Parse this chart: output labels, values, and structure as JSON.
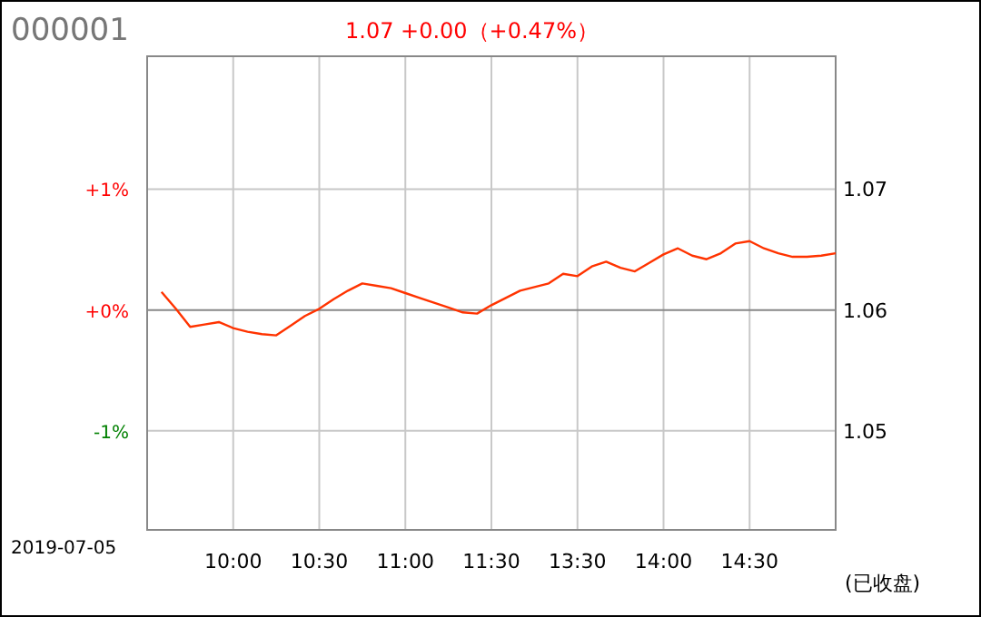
{
  "chart_data": {
    "type": "line",
    "title": "000001",
    "subtitle": "1.07   +0.00（+0.47%）",
    "annotations": [
      "2019-07-05",
      "(已收盘)"
    ],
    "series": [
      {
        "color": "#ff3300",
        "values": [
          0.15,
          0.01,
          -0.14,
          -0.12,
          -0.1,
          -0.15,
          -0.18,
          -0.2,
          -0.21,
          -0.13,
          -0.05,
          0.01,
          0.09,
          0.16,
          0.22,
          0.2,
          0.18,
          0.14,
          0.1,
          0.06,
          0.02,
          -0.02,
          -0.03,
          0.04,
          0.1,
          0.16,
          0.19,
          0.22,
          0.3,
          0.28,
          0.36,
          0.4,
          0.35,
          0.32,
          0.39,
          0.46,
          0.51,
          0.45,
          0.42,
          0.47,
          0.55,
          0.57,
          0.51,
          0.47,
          0.44,
          0.44,
          0.45,
          0.47
        ]
      }
    ],
    "categories": [
      null,
      null,
      null,
      null,
      null,
      "10:00",
      null,
      null,
      null,
      null,
      null,
      "10:30",
      null,
      null,
      null,
      null,
      null,
      "11:00",
      null,
      null,
      null,
      null,
      null,
      "11:30",
      null,
      null,
      null,
      null,
      null,
      "13:30",
      null,
      null,
      null,
      null,
      null,
      "14:00",
      null,
      null,
      null,
      null,
      null,
      "14:30",
      null,
      null,
      null,
      null,
      null,
      null
    ],
    "ylim": [
      -1.82,
      2.1
    ],
    "yticks": [
      {
        "value": 1,
        "label": "+1%"
      },
      {
        "value": 0,
        "label": "+0%"
      },
      {
        "value": -1,
        "label": "-1%"
      }
    ],
    "y2lim": [
      1.0418,
      1.081
    ],
    "y2ticks": [
      1.07,
      1.06,
      1.05
    ],
    "grid": true,
    "marker": "none",
    "line_style": "solid"
  }
}
